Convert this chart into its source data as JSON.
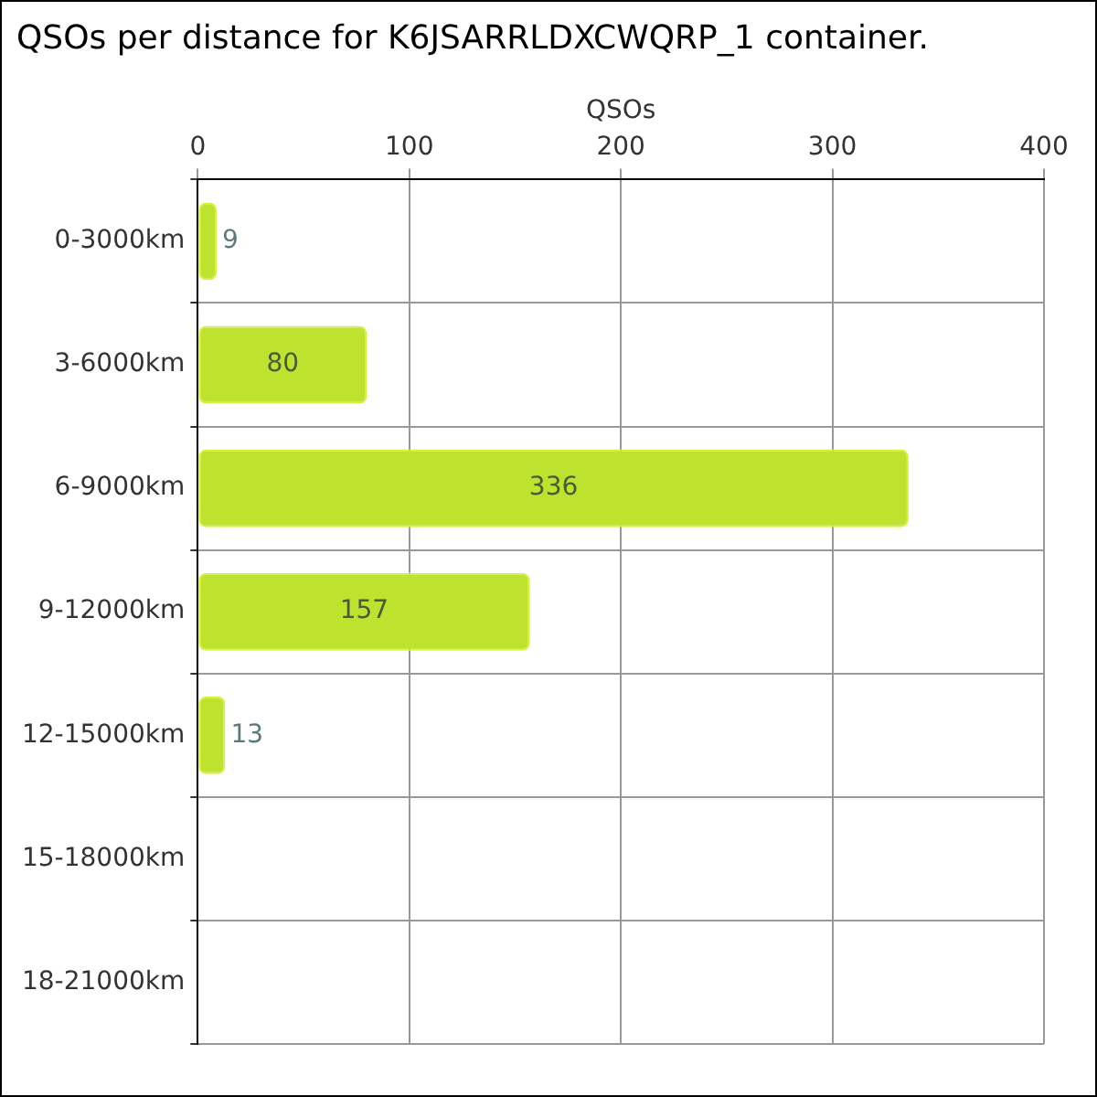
{
  "chart_data": {
    "type": "bar",
    "orientation": "horizontal",
    "title": "QSOs per distance for K6JSARRLDXCWQRP_1 container.",
    "xlabel": "QSOs",
    "categories": [
      "0-3000km",
      "3-6000km",
      "6-9000km",
      "9-12000km",
      "12-15000km",
      "15-18000km",
      "18-21000km"
    ],
    "values": [
      9,
      80,
      336,
      157,
      13,
      0,
      0
    ],
    "value_labels": [
      "9",
      "80",
      "336",
      "157",
      "13",
      null,
      null
    ],
    "color": "#bee32e",
    "xlim": [
      0,
      400
    ],
    "xticks": [
      0,
      100,
      200,
      300,
      400
    ],
    "grid": true,
    "legend": false
  }
}
